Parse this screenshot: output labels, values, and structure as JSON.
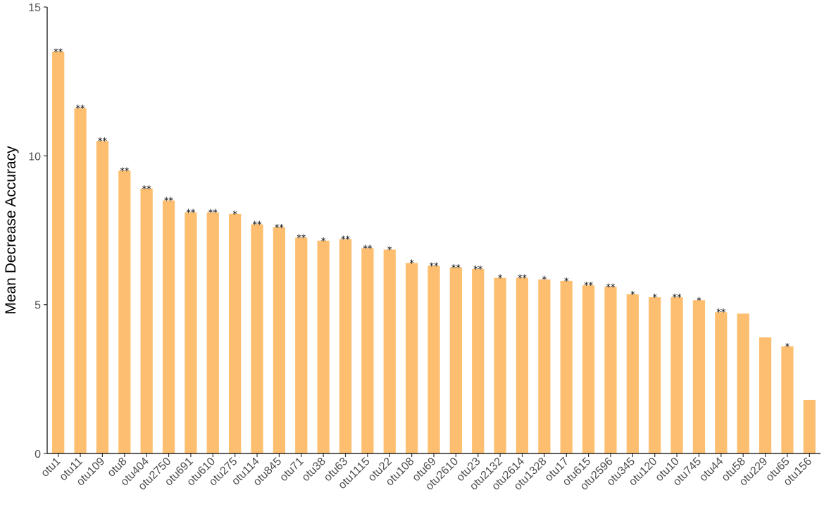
{
  "chart_data": {
    "type": "bar",
    "title": "",
    "xlabel": "",
    "ylabel": "Mean Decrease Accuracy",
    "ylim": [
      0,
      15
    ],
    "yticks": [
      "0",
      "5",
      "10",
      "15"
    ],
    "grid": false,
    "bar_color": "#fdbf6f",
    "categories": [
      "otu1",
      "otu11",
      "otu109",
      "otu8",
      "otu404",
      "otu2750",
      "otu691",
      "otu610",
      "otu275",
      "otu114",
      "otu845",
      "otu71",
      "otu38",
      "otu63",
      "otu1115",
      "otu22",
      "otu108",
      "otu69",
      "otu2610",
      "otu23",
      "otu2132",
      "otu2614",
      "otu1328",
      "otu17",
      "otu615",
      "otu2596",
      "otu345",
      "otu120",
      "otu10",
      "otu745",
      "otu44",
      "otu58",
      "otu229",
      "otu65",
      "otu156"
    ],
    "values": [
      13.5,
      11.6,
      10.5,
      9.5,
      8.9,
      8.5,
      8.1,
      8.1,
      8.05,
      7.7,
      7.6,
      7.25,
      7.15,
      7.2,
      6.9,
      6.85,
      6.4,
      6.3,
      6.25,
      6.2,
      5.9,
      5.9,
      5.85,
      5.8,
      5.65,
      5.6,
      5.35,
      5.25,
      5.25,
      5.15,
      4.75,
      4.7,
      3.9,
      3.6,
      1.8
    ],
    "significance": [
      "**",
      "**",
      "**",
      "**",
      "**",
      "**",
      "**",
      "**",
      "*",
      "**",
      "**",
      "**",
      "*",
      "**",
      "**",
      "*",
      "*",
      "**",
      "**",
      "**",
      "*",
      "**",
      "*",
      "*",
      "**",
      "**",
      "*",
      "*",
      "**",
      "*",
      "**",
      "",
      "",
      "*",
      ""
    ]
  }
}
